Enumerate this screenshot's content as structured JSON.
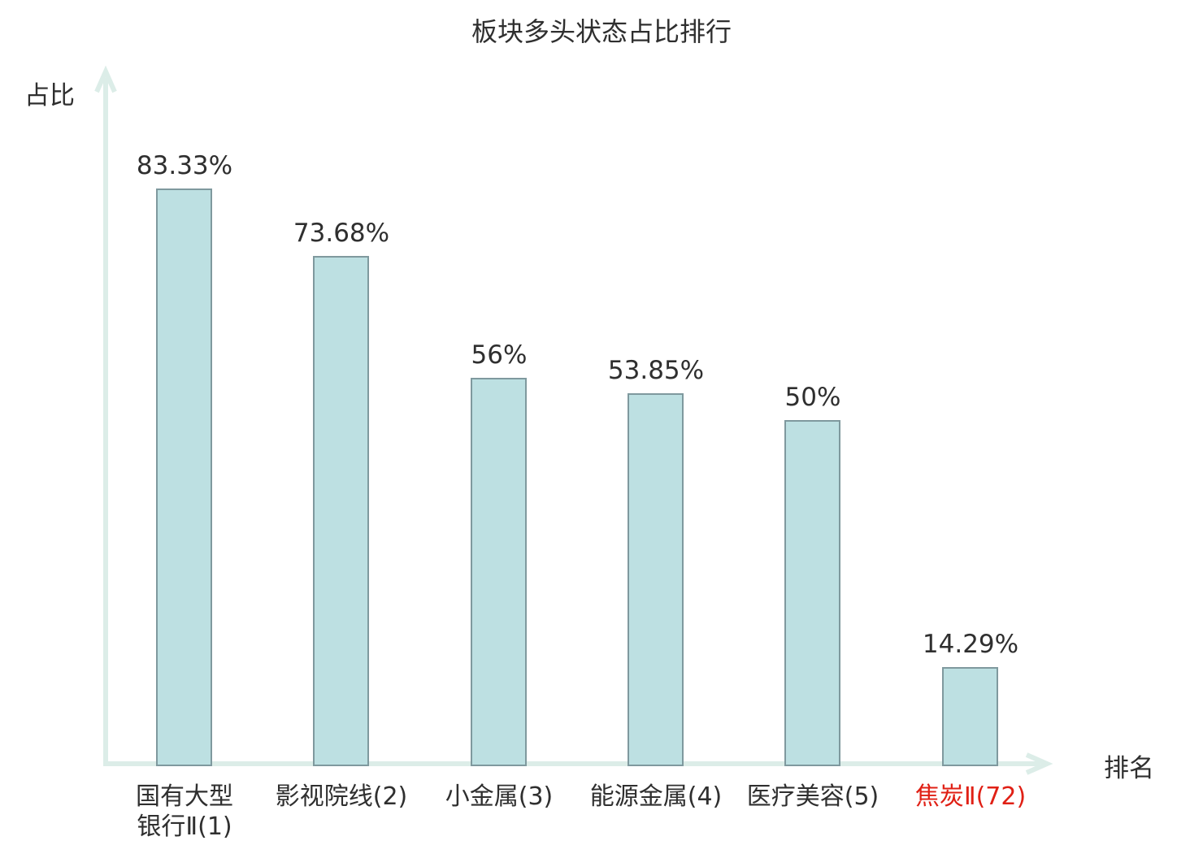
{
  "title": "板块多头状态占比排行",
  "axis": {
    "y_label": "占比",
    "x_label": "排名"
  },
  "colors": {
    "background": "#ffffff",
    "text": "#2f2f2f",
    "bar_fill": "#bde0e2",
    "bar_border": "#7f999e",
    "axis": "#dcede8",
    "highlight": "#e02015"
  },
  "chart_data": {
    "type": "bar",
    "title": "板块多头状态占比排行",
    "xlabel": "排名",
    "ylabel": "占比",
    "categories": [
      "国有大型\n银行Ⅱ(1)",
      "影视院线(2)",
      "小金属(3)",
      "能源金属(4)",
      "医疗美容(5)",
      "焦炭Ⅱ(72)"
    ],
    "values": [
      83.33,
      73.68,
      56,
      53.85,
      50,
      14.29
    ],
    "value_labels": [
      "83.33%",
      "73.68%",
      "56%",
      "53.85%",
      "50%",
      "14.29%"
    ],
    "highlight_index": 5,
    "ylim": [
      0,
      100
    ],
    "grid": false,
    "legend": "none",
    "value_labels_position": "above-bars",
    "axis_style": "arrow-ended, no ticks, no gridlines"
  }
}
